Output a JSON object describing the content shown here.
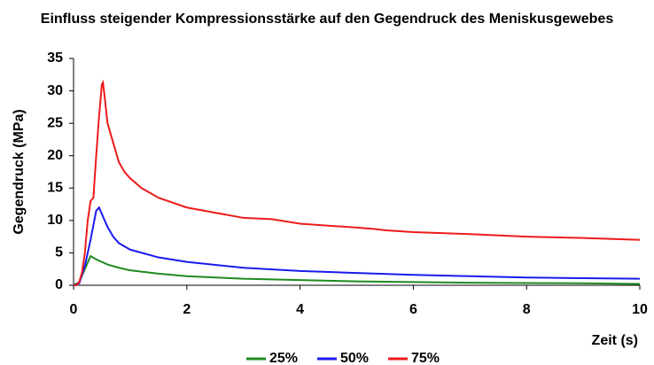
{
  "chart_data": {
    "type": "line",
    "title": "Einfluss steigender Kompressionsstärke auf den Gegendruck des Meniskusgewebes",
    "x_label": "Zeit (s)",
    "y_label": "Gegendruck (MPa)",
    "xlim": [
      0,
      10
    ],
    "xticks": [
      0,
      2,
      4,
      6,
      8,
      10
    ],
    "ylim": [
      0,
      35
    ],
    "yticks": [
      0,
      5,
      10,
      15,
      20,
      25,
      30,
      35
    ],
    "legend": "bottom",
    "series": [
      {
        "name": "25%",
        "color": "#1e8a1e",
        "x": [
          0,
          0.1,
          0.2,
          0.3,
          0.4,
          0.6,
          0.8,
          1,
          1.5,
          2,
          3,
          4,
          5,
          6,
          7,
          8,
          9,
          10
        ],
        "values": [
          0,
          0.5,
          2.5,
          4.5,
          4,
          3.2,
          2.7,
          2.3,
          1.8,
          1.4,
          1.0,
          0.8,
          0.6,
          0.5,
          0.4,
          0.35,
          0.3,
          0.2
        ]
      },
      {
        "name": "50%",
        "color": "#1a1aee",
        "x": [
          0,
          0.1,
          0.2,
          0.3,
          0.4,
          0.45,
          0.5,
          0.6,
          0.7,
          0.8,
          1,
          1.5,
          2,
          3,
          4,
          5,
          6,
          7,
          8,
          9,
          10
        ],
        "values": [
          0,
          0.3,
          3,
          7,
          11.5,
          12,
          11,
          9,
          7.5,
          6.5,
          5.5,
          4.3,
          3.6,
          2.7,
          2.2,
          1.9,
          1.6,
          1.4,
          1.2,
          1.1,
          1.0
        ]
      },
      {
        "name": "75%",
        "color": "#ee1a1a",
        "x": [
          0,
          0.05,
          0.1,
          0.15,
          0.2,
          0.25,
          0.3,
          0.35,
          0.4,
          0.45,
          0.5,
          0.52,
          0.55,
          0.6,
          0.7,
          0.8,
          0.9,
          1,
          1.2,
          1.5,
          2,
          2.5,
          3,
          3.5,
          4,
          4.5,
          5,
          5.3,
          5.5,
          6,
          7,
          8,
          9,
          10
        ],
        "values": [
          0,
          0,
          0.5,
          2,
          5,
          10,
          13,
          13.5,
          20,
          26,
          31,
          31.3,
          29,
          25,
          22,
          19,
          17.5,
          16.5,
          15,
          13.5,
          12,
          11.2,
          10.4,
          10.2,
          9.5,
          9.2,
          8.9,
          8.7,
          8.5,
          8.2,
          7.9,
          7.5,
          7.3,
          7.0
        ]
      }
    ]
  }
}
